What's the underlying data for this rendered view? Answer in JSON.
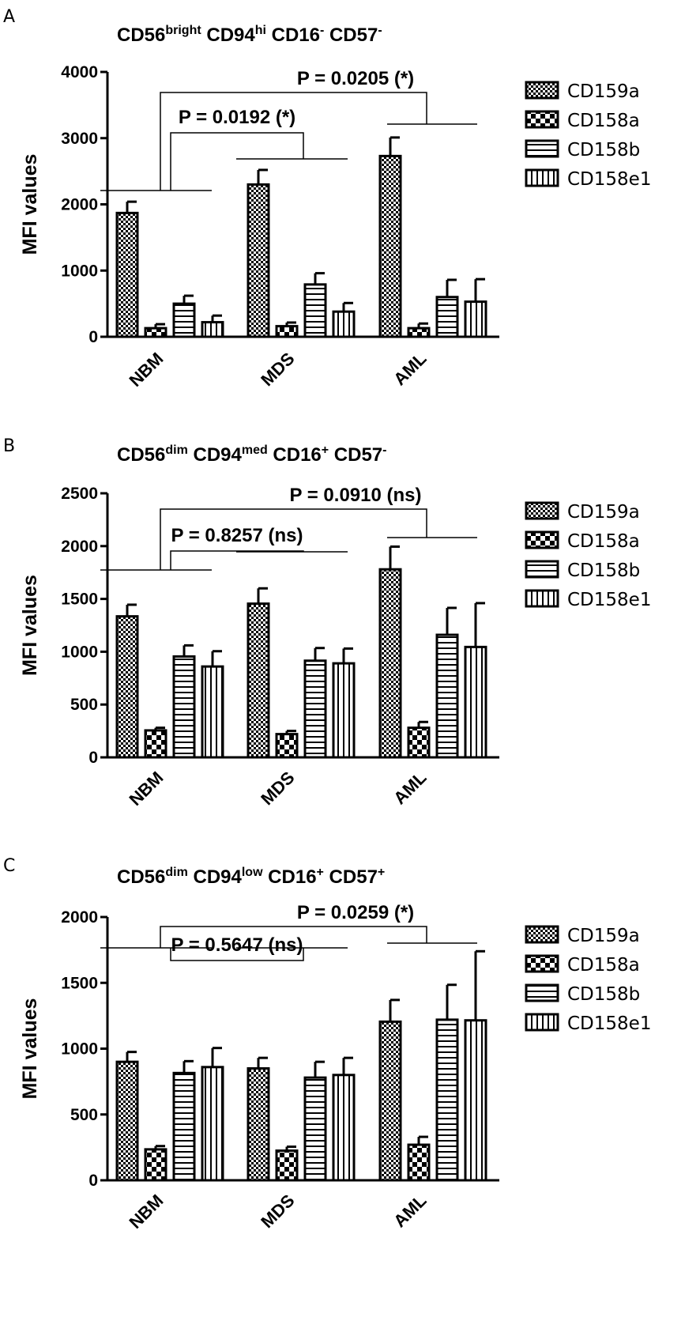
{
  "patterns": {
    "CD159a": "dense-check",
    "CD158a": "coarse-check",
    "CD158b": "horizontal-stripes",
    "CD158e1": "vertical-stripes"
  },
  "chart_data": [
    {
      "type": "bar",
      "panel_label": "A",
      "title_parts": [
        {
          "text": "CD56",
          "sup": false
        },
        {
          "text": "bright",
          "sup": true
        },
        {
          "text": " CD94",
          "sup": false
        },
        {
          "text": "hi",
          "sup": true
        },
        {
          "text": " CD16",
          "sup": false
        },
        {
          "text": "-",
          "sup": true
        },
        {
          "text": " CD57",
          "sup": false
        },
        {
          "text": "-",
          "sup": true
        }
      ],
      "ylabel": "MFI values",
      "ylim": [
        0,
        4000
      ],
      "yticks": [
        0,
        1000,
        2000,
        3000,
        4000
      ],
      "categories": [
        "NBM",
        "MDS",
        "AML"
      ],
      "series": [
        {
          "name": "CD159a",
          "values": [
            1870,
            2300,
            2730
          ],
          "errors": [
            170,
            220,
            280
          ]
        },
        {
          "name": "CD158a",
          "values": [
            130,
            160,
            130
          ],
          "errors": [
            60,
            55,
            70
          ]
        },
        {
          "name": "CD158b",
          "values": [
            500,
            790,
            600
          ],
          "errors": [
            120,
            170,
            260
          ]
        },
        {
          "name": "CD158e1",
          "values": [
            220,
            380,
            530
          ],
          "errors": [
            100,
            130,
            340
          ]
        }
      ],
      "comparisons": [
        {
          "label": "P = 0.0192 (*)",
          "from": "NBM",
          "to": "MDS"
        },
        {
          "label": "P = 0.0205 (*)",
          "from": "NBM",
          "to": "AML"
        }
      ]
    },
    {
      "type": "bar",
      "panel_label": "B",
      "title_parts": [
        {
          "text": "CD56",
          "sup": false
        },
        {
          "text": "dim",
          "sup": true
        },
        {
          "text": " CD94",
          "sup": false
        },
        {
          "text": "med",
          "sup": true
        },
        {
          "text": " CD16",
          "sup": false
        },
        {
          "text": "+",
          "sup": true
        },
        {
          "text": " CD57",
          "sup": false
        },
        {
          "text": "-",
          "sup": true
        }
      ],
      "ylabel": "MFI values",
      "ylim": [
        0,
        2500
      ],
      "yticks": [
        0,
        500,
        1000,
        1500,
        2000,
        2500
      ],
      "categories": [
        "NBM",
        "MDS",
        "AML"
      ],
      "series": [
        {
          "name": "CD159a",
          "values": [
            1335,
            1455,
            1780
          ],
          "errors": [
            110,
            145,
            215
          ]
        },
        {
          "name": "CD158a",
          "values": [
            255,
            220,
            280
          ],
          "errors": [
            25,
            30,
            55
          ]
        },
        {
          "name": "CD158b",
          "values": [
            955,
            915,
            1160
          ],
          "errors": [
            105,
            120,
            255
          ]
        },
        {
          "name": "CD158e1",
          "values": [
            860,
            890,
            1045
          ],
          "errors": [
            145,
            140,
            415
          ]
        }
      ],
      "comparisons": [
        {
          "label": "P = 0.8257 (ns)",
          "from": "NBM",
          "to": "MDS"
        },
        {
          "label": "P = 0.0910 (ns)",
          "from": "NBM",
          "to": "AML"
        }
      ]
    },
    {
      "type": "bar",
      "panel_label": "C",
      "title_parts": [
        {
          "text": "CD56",
          "sup": false
        },
        {
          "text": "dim",
          "sup": true
        },
        {
          "text": " CD94",
          "sup": false
        },
        {
          "text": "low",
          "sup": true
        },
        {
          "text": " CD16",
          "sup": false
        },
        {
          "text": "+",
          "sup": true
        },
        {
          "text": " CD57",
          "sup": false
        },
        {
          "text": "+",
          "sup": true
        }
      ],
      "ylabel": "MFI values",
      "ylim": [
        0,
        2000
      ],
      "yticks": [
        0,
        500,
        1000,
        1500,
        2000
      ],
      "categories": [
        "NBM",
        "MDS",
        "AML"
      ],
      "series": [
        {
          "name": "CD159a",
          "values": [
            900,
            850,
            1205
          ],
          "errors": [
            75,
            80,
            165
          ]
        },
        {
          "name": "CD158a",
          "values": [
            235,
            225,
            270
          ],
          "errors": [
            25,
            30,
            60
          ]
        },
        {
          "name": "CD158b",
          "values": [
            815,
            780,
            1220
          ],
          "errors": [
            90,
            120,
            265
          ]
        },
        {
          "name": "CD158e1",
          "values": [
            860,
            800,
            1215
          ],
          "errors": [
            145,
            130,
            525
          ]
        }
      ],
      "comparisons": [
        {
          "label": "P = 0.5647 (ns)",
          "from": "NBM",
          "to": "MDS"
        },
        {
          "label": "P = 0.0259 (*)",
          "from": "NBM",
          "to": "AML"
        }
      ]
    }
  ]
}
